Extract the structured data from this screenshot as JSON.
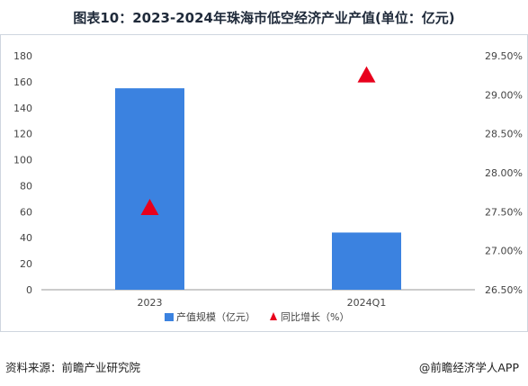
{
  "title": "图表10：2023-2024年珠海市低空经济产业产值(单位：亿元)",
  "footer": {
    "source": "资料来源：前瞻产业研究院",
    "brand": "@前瞻经济学人APP"
  },
  "chart_data": {
    "type": "bar",
    "categories": [
      "2023",
      "2024Q1"
    ],
    "series": [
      {
        "name": "产值规模（亿元）",
        "kind": "bar",
        "axis": "left",
        "color": "#3b82e0",
        "values": [
          155,
          44
        ]
      },
      {
        "name": "同比增长（%）",
        "kind": "marker",
        "axis": "right",
        "color": "#e8001c",
        "values": [
          27.55,
          29.25
        ]
      }
    ],
    "y_left": {
      "min": 0,
      "max": 180,
      "ticks": [
        0,
        20,
        40,
        60,
        80,
        100,
        120,
        140,
        160,
        180
      ]
    },
    "y_right": {
      "min": 26.5,
      "max": 29.5,
      "ticks": [
        26.5,
        27.0,
        27.5,
        28.0,
        28.5,
        29.0,
        29.5
      ],
      "tick_labels": [
        "26.50%",
        "27.00%",
        "27.50%",
        "28.00%",
        "28.50%",
        "29.00%",
        "29.50%"
      ]
    },
    "grid": false,
    "legend": "bottom"
  }
}
